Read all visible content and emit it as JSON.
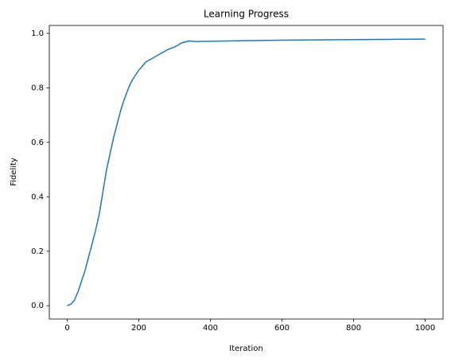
{
  "chart_data": {
    "type": "line",
    "title": "Learning Progress",
    "xlabel": "Iteration",
    "ylabel": "Fidelity",
    "x": [
      0,
      10,
      20,
      30,
      40,
      50,
      60,
      70,
      80,
      90,
      100,
      110,
      120,
      130,
      140,
      150,
      160,
      170,
      180,
      190,
      200,
      210,
      220,
      240,
      260,
      280,
      300,
      320,
      340,
      350,
      360,
      400,
      500,
      600,
      700,
      800,
      900,
      1000
    ],
    "series": [
      {
        "name": "Fidelity",
        "color": "#1f77b4",
        "values": [
          0,
          0.005,
          0.02,
          0.05,
          0.09,
          0.13,
          0.18,
          0.23,
          0.28,
          0.34,
          0.42,
          0.5,
          0.56,
          0.62,
          0.67,
          0.72,
          0.76,
          0.795,
          0.825,
          0.845,
          0.865,
          0.88,
          0.895,
          0.91,
          0.925,
          0.94,
          0.95,
          0.965,
          0.972,
          0.971,
          0.97,
          0.971,
          0.973,
          0.975,
          0.976,
          0.977,
          0.978,
          0.979
        ]
      }
    ],
    "xlim": [
      -50,
      1050
    ],
    "xticks": [
      0,
      200,
      400,
      600,
      800,
      1000
    ],
    "ylim": [
      -0.049,
      1.029
    ],
    "yticks": [
      {
        "value": 0,
        "label": "0.0"
      },
      0.2,
      0.4,
      0.6,
      0.8,
      {
        "value": 1,
        "label": "1.0"
      }
    ],
    "grid": false
  }
}
